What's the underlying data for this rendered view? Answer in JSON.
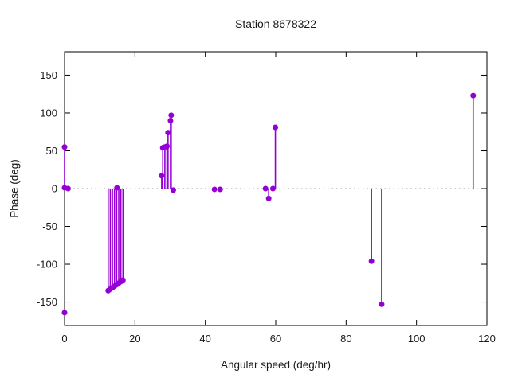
{
  "chart_data": {
    "type": "scatter",
    "style": "impulses-with-points",
    "title": "Station 8678322",
    "xlabel": "Angular speed (deg/hr)",
    "ylabel": "Phase (deg)",
    "xlim": [
      0,
      120
    ],
    "ylim": [
      -181,
      181
    ],
    "x_ticks": [
      0,
      20,
      40,
      60,
      80,
      100,
      120
    ],
    "y_ticks": [
      -150,
      -100,
      -50,
      0,
      50,
      100,
      150
    ],
    "grid": false,
    "zero_line_dotted": true,
    "legend_position": "none",
    "series_color": "#9400D3",
    "zero_line_color": "#999999",
    "border_color": "#000000",
    "points": [
      {
        "x": 0,
        "y": 55,
        "stem": true
      },
      {
        "x": 0,
        "y": 1,
        "stem": false
      },
      {
        "x": 1.0,
        "y": 0,
        "stem": false
      },
      {
        "x": 0,
        "y": -164,
        "stem": false
      },
      {
        "x": 12.4,
        "y": -135,
        "stem": true
      },
      {
        "x": 13.0,
        "y": -133,
        "stem": true
      },
      {
        "x": 13.6,
        "y": -131,
        "stem": true
      },
      {
        "x": 14.2,
        "y": -129,
        "stem": true
      },
      {
        "x": 14.8,
        "y": -127,
        "stem": true
      },
      {
        "x": 15.4,
        "y": -125,
        "stem": true
      },
      {
        "x": 16.0,
        "y": -123,
        "stem": true
      },
      {
        "x": 16.6,
        "y": -121,
        "stem": true
      },
      {
        "x": 14.9,
        "y": 1,
        "stem": false
      },
      {
        "x": 27.6,
        "y": 17,
        "stem": true
      },
      {
        "x": 27.9,
        "y": 54,
        "stem": true
      },
      {
        "x": 28.5,
        "y": 55,
        "stem": true
      },
      {
        "x": 29.1,
        "y": 56,
        "stem": true
      },
      {
        "x": 29.4,
        "y": 74,
        "stem": true
      },
      {
        "x": 30.1,
        "y": 90,
        "stem": true
      },
      {
        "x": 30.3,
        "y": 97,
        "stem": true
      },
      {
        "x": 30.9,
        "y": -2,
        "stem": false
      },
      {
        "x": 42.6,
        "y": -1,
        "stem": false
      },
      {
        "x": 44.2,
        "y": -1,
        "stem": false
      },
      {
        "x": 57.1,
        "y": 0,
        "stem": false
      },
      {
        "x": 58.0,
        "y": -13,
        "stem": true
      },
      {
        "x": 59.2,
        "y": 0,
        "stem": false
      },
      {
        "x": 59.9,
        "y": 81,
        "stem": true
      },
      {
        "x": 87.2,
        "y": -96,
        "stem": true
      },
      {
        "x": 90.1,
        "y": -153,
        "stem": true
      },
      {
        "x": 116.1,
        "y": 123,
        "stem": true
      }
    ]
  }
}
